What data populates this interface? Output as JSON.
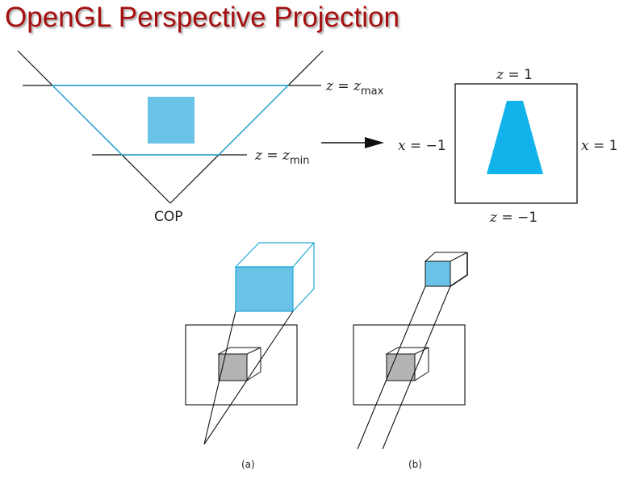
{
  "title": "OpenGL Perspective Projection",
  "colors": {
    "title": "#a50f0f",
    "object": "#6ac3e6",
    "normalized_object": "#11b3ea",
    "frustum": "#24a8d6",
    "gray_cube": "#b4b4b4"
  },
  "top_diagram": {
    "zmax_label": {
      "lhs": "z",
      "eq": " = ",
      "var": "z",
      "sub": "max"
    },
    "zmin_label": {
      "lhs": "z",
      "eq": " = ",
      "var": "z",
      "sub": "min"
    },
    "cop_label": "COP",
    "canonical_view": {
      "top": {
        "var": "z",
        "rest": " = 1"
      },
      "bottom": {
        "var": "z",
        "rest": " = −1"
      },
      "left": {
        "var": "x",
        "rest": " = −1"
      },
      "right": {
        "var": "x",
        "rest": " = 1"
      }
    }
  },
  "bottom_diagram": {
    "caption_a": "(a)",
    "caption_b": "(b)"
  }
}
